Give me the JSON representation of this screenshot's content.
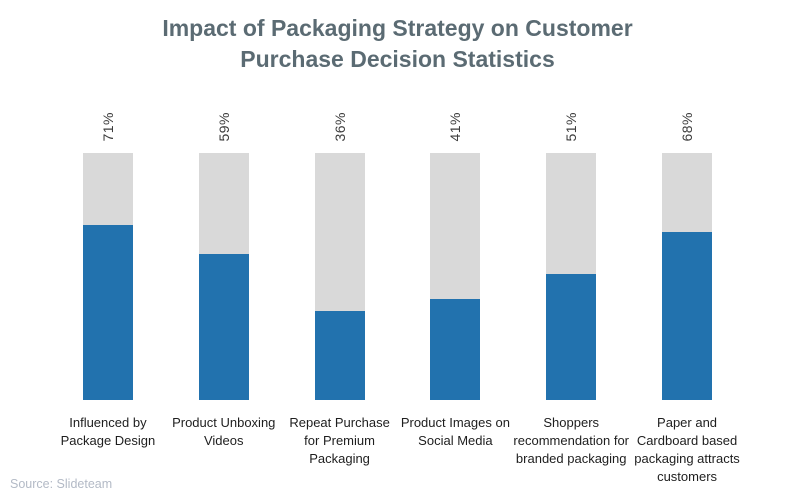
{
  "title": "Impact of Packaging Strategy on Customer Purchase Decision Statistics",
  "source": "Source: Slideteam",
  "colors": {
    "bar_fill": "#2272ae",
    "bar_track": "#d9d9d9",
    "title_text": "#5b6b73",
    "value_label_text": "#3c3c3c",
    "category_label_text": "#1e1e1e",
    "source_text": "#b3bac6"
  },
  "chart_data": {
    "type": "bar",
    "subtype": "vertical-progress-columns",
    "title": "Impact of Packaging Strategy on Customer Purchase Decision Statistics",
    "categories": [
      "Influenced by Package Design",
      "Product Unboxing Videos",
      "Repeat Purchase for Premium Packaging",
      "Product Images on Social Media",
      "Shoppers recommendation for branded packaging",
      "Paper and Cardboard based packaging attracts customers"
    ],
    "values": [
      71,
      59,
      36,
      41,
      51,
      68
    ],
    "value_labels": [
      "71%",
      "59%",
      "36%",
      "41%",
      "51%",
      "68%"
    ],
    "value_label_rotation": -90,
    "xlabel": "",
    "ylabel": "",
    "ylim": [
      0,
      100
    ],
    "grid": false,
    "legend": "none",
    "track_full_height_represents": 100
  }
}
